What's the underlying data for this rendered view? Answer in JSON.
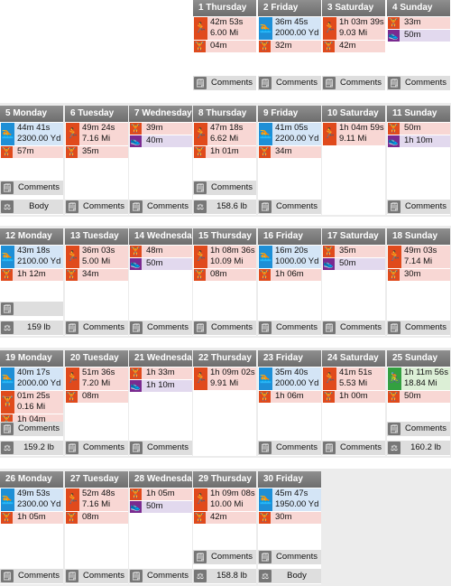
{
  "icons": {
    "run": "running-icon",
    "swim": "swimming-icon",
    "strength": "weightlifting-icon",
    "elliptical": "elliptical-shoe-icon",
    "bike": "cycling-icon",
    "comments": "comment-page-icon",
    "weight": "scale-icon"
  },
  "colors": {
    "header": "#7a7a7a",
    "strength_bg": "#f8d7d4",
    "swim_bg": "#d4e5f6",
    "elliptical_bg": "#e2d9ee",
    "bike_bg": "#dcefd6",
    "foot_bg": "#dedede"
  },
  "weeks": [
    [
      null,
      null,
      null,
      {
        "day": "1 Thursday",
        "activities": [
          {
            "sport": "run",
            "lines": [
              "42m 53s",
              "6.00 Mi"
            ]
          },
          {
            "sport": "strength",
            "lines": [
              "04m"
            ]
          }
        ],
        "footers": [
          {
            "icon": "comments",
            "label": "Comments"
          }
        ]
      },
      {
        "day": "2 Friday",
        "activities": [
          {
            "sport": "swim",
            "lines": [
              "36m 45s",
              "2000.00 Yd"
            ]
          },
          {
            "sport": "strength",
            "lines": [
              "32m"
            ]
          }
        ],
        "footers": [
          {
            "icon": "comments",
            "label": "Comments"
          }
        ]
      },
      {
        "day": "3 Saturday",
        "activities": [
          {
            "sport": "run",
            "lines": [
              "1h 03m 39s",
              "9.03 Mi"
            ]
          },
          {
            "sport": "strength",
            "lines": [
              "42m"
            ]
          }
        ],
        "footers": [
          {
            "icon": "comments",
            "label": "Comments"
          }
        ]
      },
      {
        "day": "4 Sunday",
        "activities": [
          {
            "sport": "strength",
            "lines": [
              "33m"
            ]
          },
          {
            "sport": "elliptical",
            "lines": [
              "50m"
            ]
          }
        ],
        "footers": [
          {
            "icon": "comments",
            "label": "Comments"
          }
        ]
      }
    ],
    [
      {
        "day": "5 Monday",
        "activities": [
          {
            "sport": "swim",
            "lines": [
              "44m 41s",
              "2300.00 Yd"
            ]
          },
          {
            "sport": "strength",
            "lines": [
              "57m"
            ]
          }
        ],
        "footers": [
          {
            "icon": "comments",
            "label": "Comments"
          },
          {
            "icon": "weight",
            "label": "Body"
          }
        ]
      },
      {
        "day": "6 Tuesday",
        "activities": [
          {
            "sport": "run",
            "lines": [
              "49m 24s",
              "7.16 Mi"
            ]
          },
          {
            "sport": "strength",
            "lines": [
              "35m"
            ]
          }
        ],
        "footers": [
          {
            "icon": "comments",
            "label": "Comments"
          }
        ]
      },
      {
        "day": "7 Wednesday",
        "activities": [
          {
            "sport": "strength",
            "lines": [
              "39m"
            ]
          },
          {
            "sport": "elliptical",
            "lines": [
              "40m"
            ]
          }
        ],
        "footers": [
          {
            "icon": "comments",
            "label": "Comments"
          }
        ]
      },
      {
        "day": "8 Thursday",
        "activities": [
          {
            "sport": "run",
            "lines": [
              "47m 18s",
              "6.62 Mi"
            ]
          },
          {
            "sport": "strength",
            "lines": [
              "1h 01m"
            ]
          }
        ],
        "footers": [
          {
            "icon": "comments",
            "label": "Comments"
          },
          {
            "icon": "weight",
            "label": "158.6 lb"
          }
        ]
      },
      {
        "day": "9 Friday",
        "activities": [
          {
            "sport": "swim",
            "lines": [
              "41m 05s",
              "2200.00 Yd"
            ]
          },
          {
            "sport": "strength",
            "lines": [
              "34m"
            ]
          }
        ],
        "footers": [
          {
            "icon": "comments",
            "label": "Comments"
          }
        ]
      },
      {
        "day": "10 Saturday",
        "activities": [
          {
            "sport": "run",
            "lines": [
              "1h 04m 59s",
              "9.11 Mi"
            ]
          }
        ],
        "footers": []
      },
      {
        "day": "11 Sunday",
        "activities": [
          {
            "sport": "strength",
            "lines": [
              "50m"
            ]
          },
          {
            "sport": "elliptical",
            "lines": [
              "1h 10m"
            ]
          }
        ],
        "footers": [
          {
            "icon": "comments",
            "label": "Comments"
          }
        ]
      }
    ],
    [
      {
        "day": "12 Monday",
        "activities": [
          {
            "sport": "swim",
            "lines": [
              "43m 18s",
              "2100.00 Yd"
            ]
          },
          {
            "sport": "strength",
            "lines": [
              "1h 12m"
            ]
          }
        ],
        "footers": [
          {
            "icon": "comments",
            "label": ""
          },
          {
            "icon": "weight",
            "label": "159 lb"
          }
        ]
      },
      {
        "day": "13 Tuesday",
        "activities": [
          {
            "sport": "run",
            "lines": [
              "36m 03s",
              "5.00 Mi"
            ]
          },
          {
            "sport": "strength",
            "lines": [
              "34m"
            ]
          }
        ],
        "footers": [
          {
            "icon": "comments",
            "label": "Comments"
          }
        ]
      },
      {
        "day": "14 Wednesday",
        "activities": [
          {
            "sport": "strength",
            "lines": [
              "48m"
            ]
          },
          {
            "sport": "elliptical",
            "lines": [
              "50m"
            ]
          }
        ],
        "footers": [
          {
            "icon": "comments",
            "label": "Comments"
          }
        ]
      },
      {
        "day": "15 Thursday",
        "activities": [
          {
            "sport": "run",
            "lines": [
              "1h 08m 36s",
              "10.09 Mi"
            ]
          },
          {
            "sport": "strength",
            "lines": [
              "08m"
            ]
          }
        ],
        "footers": [
          {
            "icon": "comments",
            "label": "Comments"
          }
        ]
      },
      {
        "day": "16 Friday",
        "activities": [
          {
            "sport": "swim",
            "lines": [
              "16m 20s",
              "1000.00 Yd"
            ]
          },
          {
            "sport": "strength",
            "lines": [
              "1h 06m"
            ]
          }
        ],
        "footers": [
          {
            "icon": "comments",
            "label": "Comments"
          }
        ]
      },
      {
        "day": "17 Saturday",
        "activities": [
          {
            "sport": "strength",
            "lines": [
              "35m"
            ]
          },
          {
            "sport": "elliptical",
            "lines": [
              "50m"
            ]
          }
        ],
        "footers": [
          {
            "icon": "comments",
            "label": "Comments"
          }
        ]
      },
      {
        "day": "18 Sunday",
        "activities": [
          {
            "sport": "run",
            "lines": [
              "49m 03s",
              "7.14 Mi"
            ]
          },
          {
            "sport": "strength",
            "lines": [
              "30m"
            ]
          }
        ],
        "footers": [
          {
            "icon": "comments",
            "label": "Comments"
          }
        ]
      }
    ],
    [
      {
        "day": "19 Monday",
        "activities": [
          {
            "sport": "swim",
            "lines": [
              "40m 17s",
              "2000.00 Yd"
            ]
          },
          {
            "sport": "strength",
            "lines": [
              "01m 25s",
              "0.16 Mi"
            ]
          },
          {
            "sport": "strength",
            "lines": [
              "1h 04m"
            ]
          }
        ],
        "footers": [
          {
            "icon": "comments",
            "label": "Comments"
          },
          {
            "icon": "weight",
            "label": "159.2 lb"
          }
        ]
      },
      {
        "day": "20 Tuesday",
        "activities": [
          {
            "sport": "run",
            "lines": [
              "51m 36s",
              "7.20 Mi"
            ]
          },
          {
            "sport": "strength",
            "lines": [
              "08m"
            ]
          }
        ],
        "footers": [
          {
            "icon": "comments",
            "label": "Comments"
          }
        ]
      },
      {
        "day": "21 Wednesday",
        "activities": [
          {
            "sport": "strength",
            "lines": [
              "1h 33m"
            ]
          },
          {
            "sport": "elliptical",
            "lines": [
              "1h 10m"
            ]
          }
        ],
        "footers": [
          {
            "icon": "comments",
            "label": "Comments"
          }
        ]
      },
      {
        "day": "22 Thursday",
        "activities": [
          {
            "sport": "run",
            "lines": [
              "1h 09m 02s",
              "9.91 Mi"
            ]
          }
        ],
        "footers": []
      },
      {
        "day": "23 Friday",
        "activities": [
          {
            "sport": "swim",
            "lines": [
              "35m 40s",
              "2000.00 Yd"
            ]
          },
          {
            "sport": "strength",
            "lines": [
              "1h 06m"
            ]
          }
        ],
        "footers": [
          {
            "icon": "comments",
            "label": "Comments"
          }
        ]
      },
      {
        "day": "24 Saturday",
        "activities": [
          {
            "sport": "run",
            "lines": [
              "41m 51s",
              "5.53 Mi"
            ]
          },
          {
            "sport": "strength",
            "lines": [
              "1h 00m"
            ]
          }
        ],
        "footers": [
          {
            "icon": "comments",
            "label": "Comments"
          }
        ]
      },
      {
        "day": "25 Sunday",
        "activities": [
          {
            "sport": "bike",
            "lines": [
              "1h 11m 56s",
              "18.84 Mi"
            ]
          },
          {
            "sport": "strength",
            "lines": [
              "50m"
            ]
          }
        ],
        "footers": [
          {
            "icon": "comments",
            "label": "Comments"
          },
          {
            "icon": "weight",
            "label": "160.2 lb"
          }
        ]
      }
    ],
    [
      {
        "day": "26 Monday",
        "activities": [
          {
            "sport": "swim",
            "lines": [
              "49m 53s",
              "2300.00 Yd"
            ]
          },
          {
            "sport": "strength",
            "lines": [
              "1h 05m"
            ]
          }
        ],
        "footers": [
          {
            "icon": "comments",
            "label": "Comments"
          }
        ]
      },
      {
        "day": "27 Tuesday",
        "activities": [
          {
            "sport": "run",
            "lines": [
              "52m 48s",
              "7.16 Mi"
            ]
          },
          {
            "sport": "strength",
            "lines": [
              "08m"
            ]
          }
        ],
        "footers": [
          {
            "icon": "comments",
            "label": "Comments"
          }
        ]
      },
      {
        "day": "28 Wednesday",
        "activities": [
          {
            "sport": "strength",
            "lines": [
              "1h 05m"
            ]
          },
          {
            "sport": "elliptical",
            "lines": [
              "50m"
            ]
          }
        ],
        "footers": [
          {
            "icon": "comments",
            "label": "Comments"
          }
        ]
      },
      {
        "day": "29 Thursday",
        "activities": [
          {
            "sport": "run",
            "lines": [
              "1h 09m 08s",
              "10.00 Mi"
            ]
          },
          {
            "sport": "strength",
            "lines": [
              "42m"
            ]
          }
        ],
        "footers": [
          {
            "icon": "comments",
            "label": "Comments"
          },
          {
            "icon": "weight",
            "label": "158.8 lb"
          }
        ]
      },
      {
        "day": "30 Friday",
        "activities": [
          {
            "sport": "swim",
            "lines": [
              "45m 47s",
              "1950.00 Yd"
            ]
          },
          {
            "sport": "strength",
            "lines": [
              "30m"
            ]
          }
        ],
        "footers": [
          {
            "icon": "comments",
            "label": "Comments"
          },
          {
            "icon": "weight",
            "label": "Body"
          }
        ]
      },
      null,
      null
    ]
  ]
}
